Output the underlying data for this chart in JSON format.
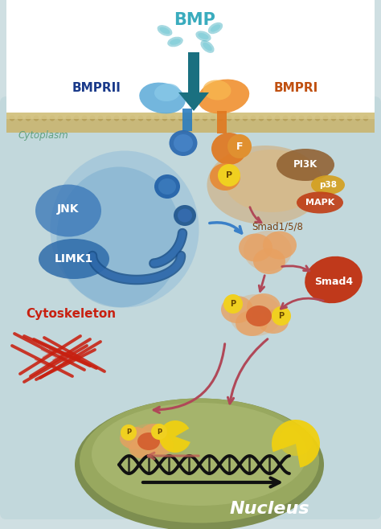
{
  "bg_color": "#cfdfe2",
  "cell_bg": "#c2d8dc",
  "membrane_color": "#c8b87a",
  "membrane_stripe": "#b09850",
  "bmp_color": "#3aacbe",
  "bmprii_color": "#2a7dc0",
  "bmpri_color": "#e07820",
  "jnk_color": "#4a90c8",
  "limk1_color": "#2a6aaa",
  "blue_body_color": "#5a8fc8",
  "smad_peach": "#e8a060",
  "smad_orange": "#d46030",
  "smad4_color": "#c03010",
  "pi3k_color": "#8b6035",
  "p38_color": "#d4a030",
  "mapk_color": "#c84820",
  "nucleus_color": "#9aaa60",
  "nucleus_edge": "#7a8a48",
  "nucleus_inner": "#b0be78",
  "yellow_shape": "#f0d010",
  "cytoskeleton_color": "#c82010",
  "arrow_dark": "#1a7080",
  "arrow_blue": "#3a80c8",
  "arrow_signal": "#b04858",
  "text_cytoplasm": "#60a080",
  "text_nucleus": "#ffffff",
  "text_bmprii": "#1a3a8a",
  "text_bmpri": "#c05010",
  "text_cytoskeleton": "#c82010",
  "text_jnk": "#ffffff",
  "text_limk1": "#ffffff",
  "p_bg_color": "#f0d020",
  "smad158_text": "#7a4010",
  "labels": {
    "BMP": "BMP",
    "BMPRII": "BMPRII",
    "BMPRI": "BMPRI",
    "JNK": "JNK",
    "LIMK1": "LIMK1",
    "Cytoplasm": "Cytoplasm",
    "Cytoskeleton": "Cytoskeleton",
    "PI3K": "PI3K",
    "p38": "p38",
    "MAPK": "MAPK",
    "Smad158": "Smad1/5/8",
    "Smad4": "Smad4",
    "Nucleus": "Nucleus",
    "F": "F",
    "P": "P"
  }
}
